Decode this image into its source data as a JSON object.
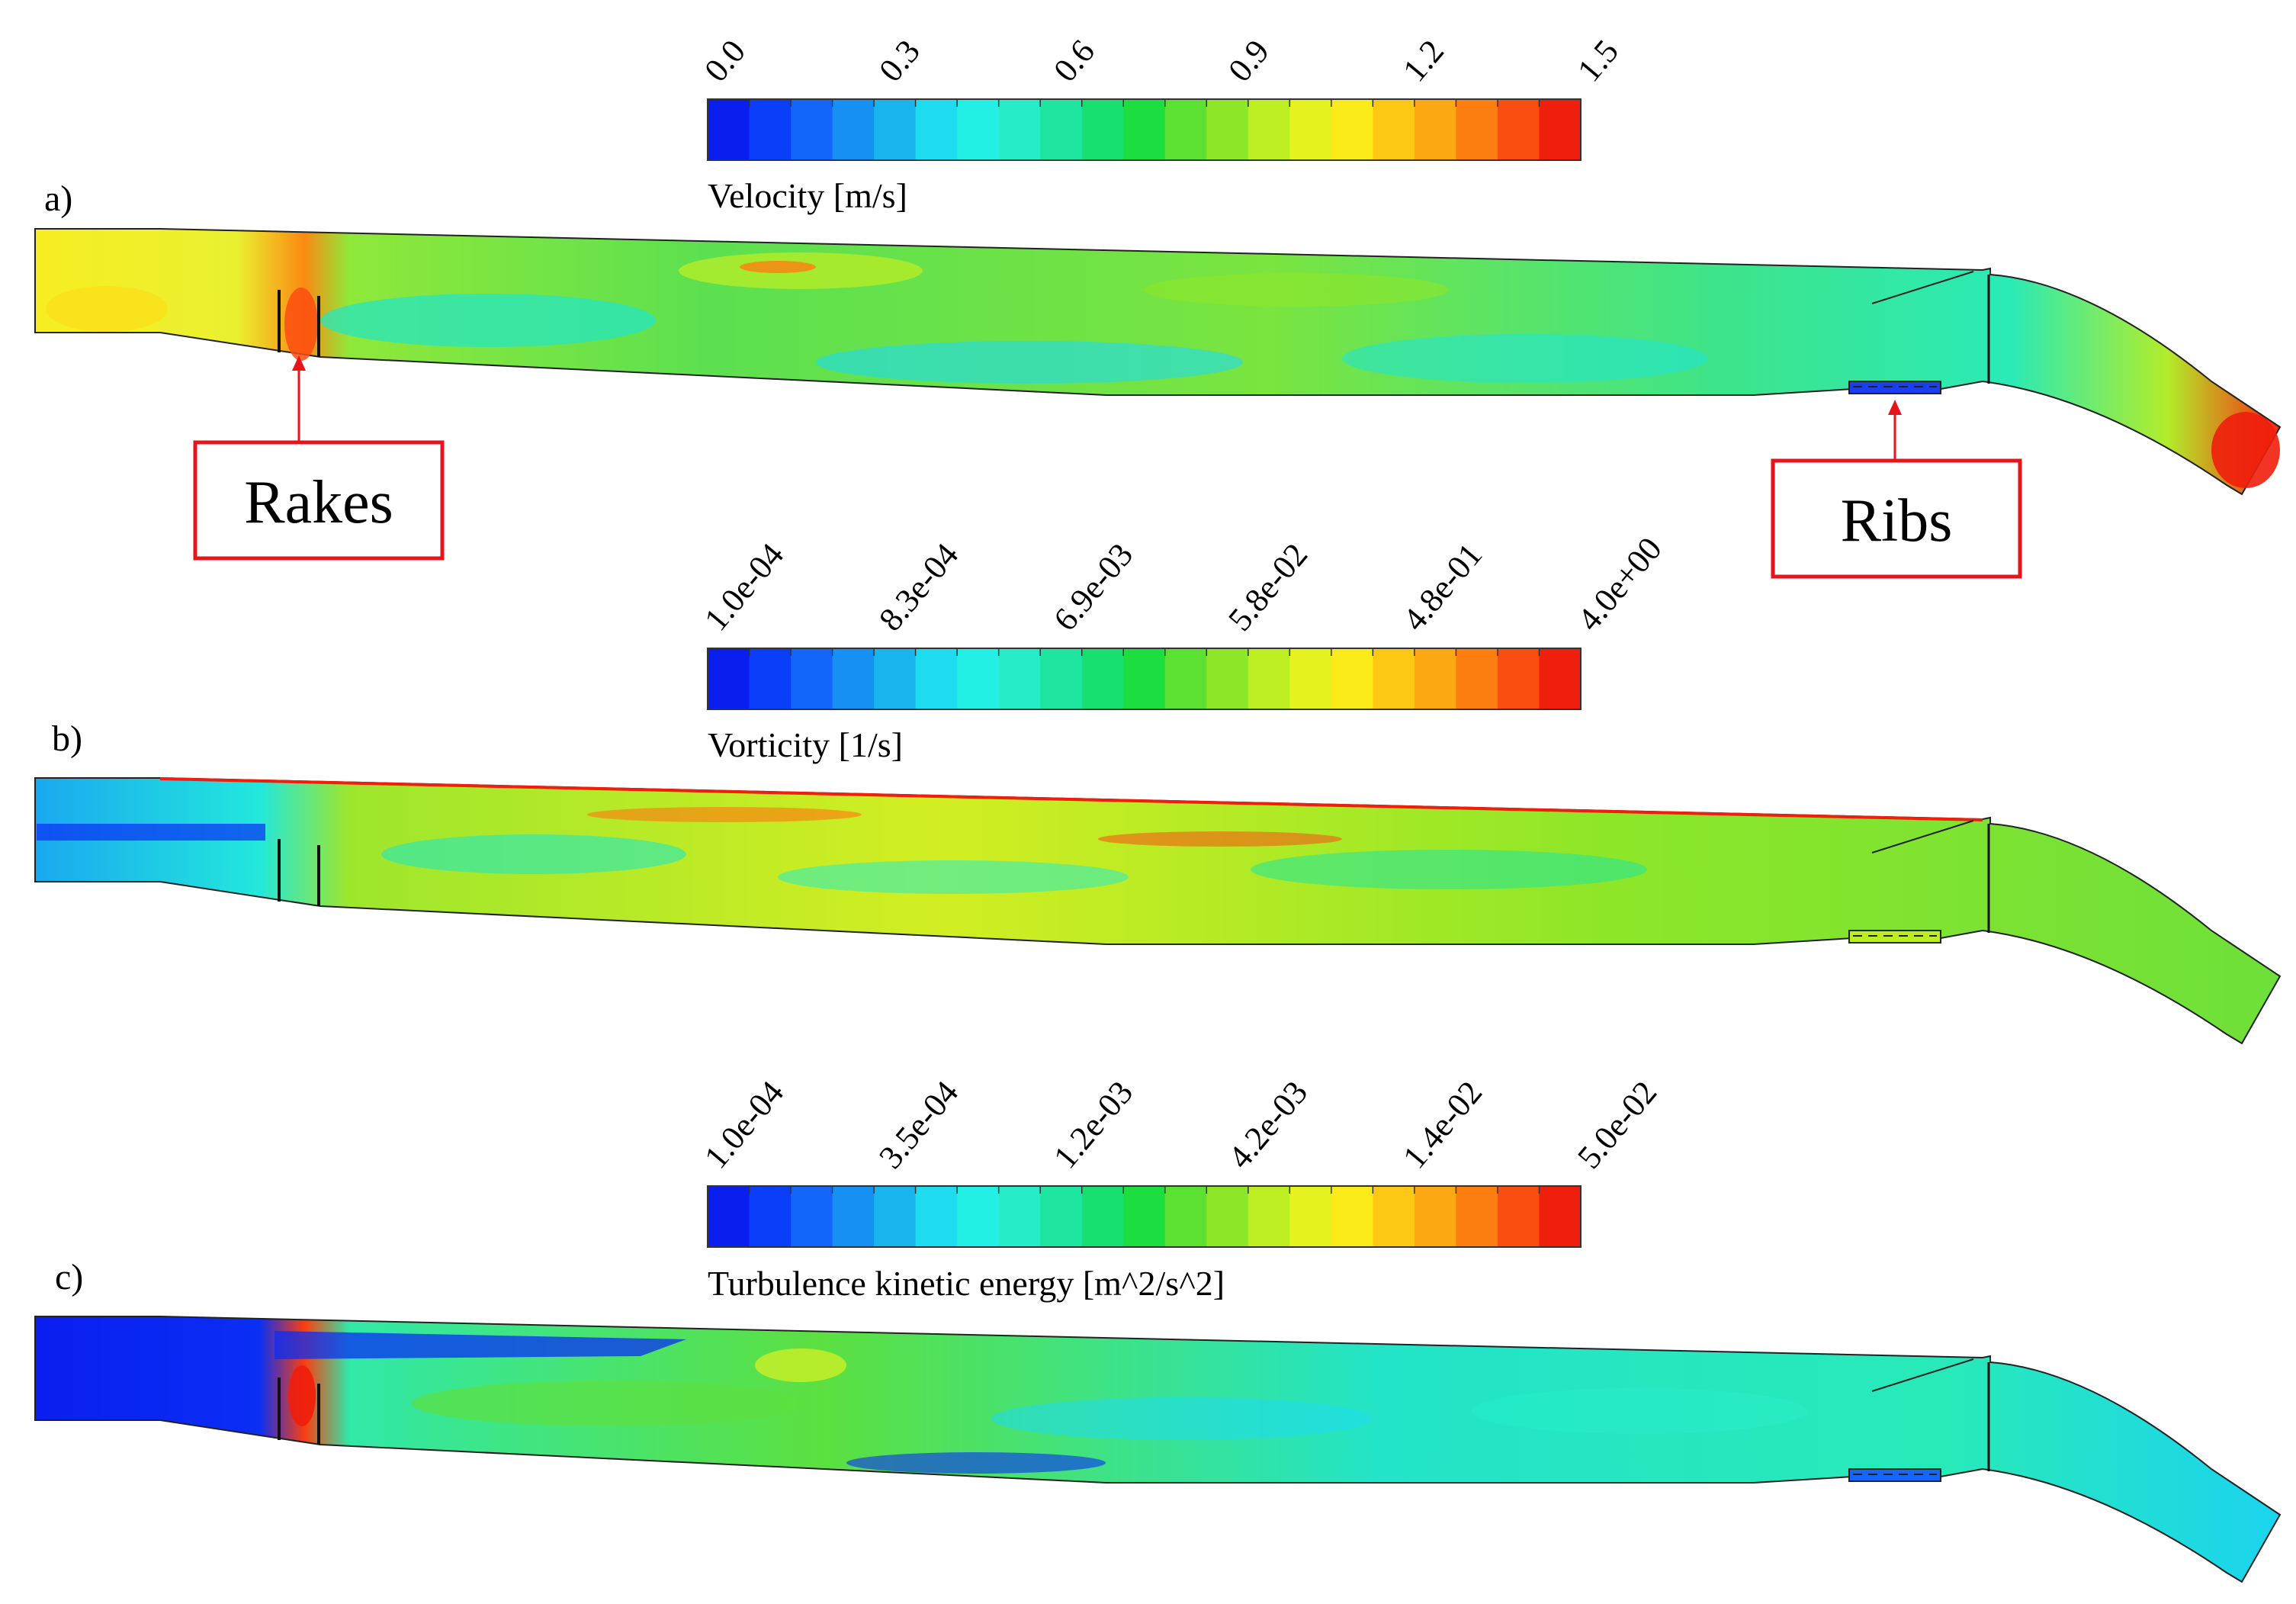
{
  "colormap": [
    "#0a1ef0",
    "#0a3ef8",
    "#1466fa",
    "#1690f2",
    "#18b4ee",
    "#1edcf0",
    "#22f0e4",
    "#26ecc8",
    "#1ee6a0",
    "#18e070",
    "#1cde40",
    "#5ce032",
    "#8ee628",
    "#bcee22",
    "#e6f21e",
    "#faea18",
    "#fcc814",
    "#fca812",
    "#fc7e10",
    "#fa4e10",
    "#f01e0c"
  ],
  "colorbars": [
    {
      "id": "velocity",
      "title": "Velocity [m/s]",
      "ticks": [
        "0.0",
        "0.3",
        "0.6",
        "0.9",
        "1.2",
        "1.5"
      ]
    },
    {
      "id": "vorticity",
      "title": "Vorticity [1/s]",
      "ticks": [
        "1.0e-04",
        "8.3e-04",
        "6.9e-03",
        "5.8e-02",
        "4.8e-01",
        "4.0e+00"
      ]
    },
    {
      "id": "tke",
      "title": "Turbulence kinetic energy [m^2/s^2]",
      "ticks": [
        "1.0e-04",
        "3.5e-04",
        "1.2e-03",
        "4.2e-03",
        "1.4e-02",
        "5.0e-02"
      ]
    }
  ],
  "panels": [
    {
      "label": "a)",
      "field": "velocity"
    },
    {
      "label": "b)",
      "field": "vorticity"
    },
    {
      "label": "c)",
      "field": "tke"
    }
  ],
  "callouts": {
    "rakes": "Rakes",
    "ribs": "Ribs"
  }
}
